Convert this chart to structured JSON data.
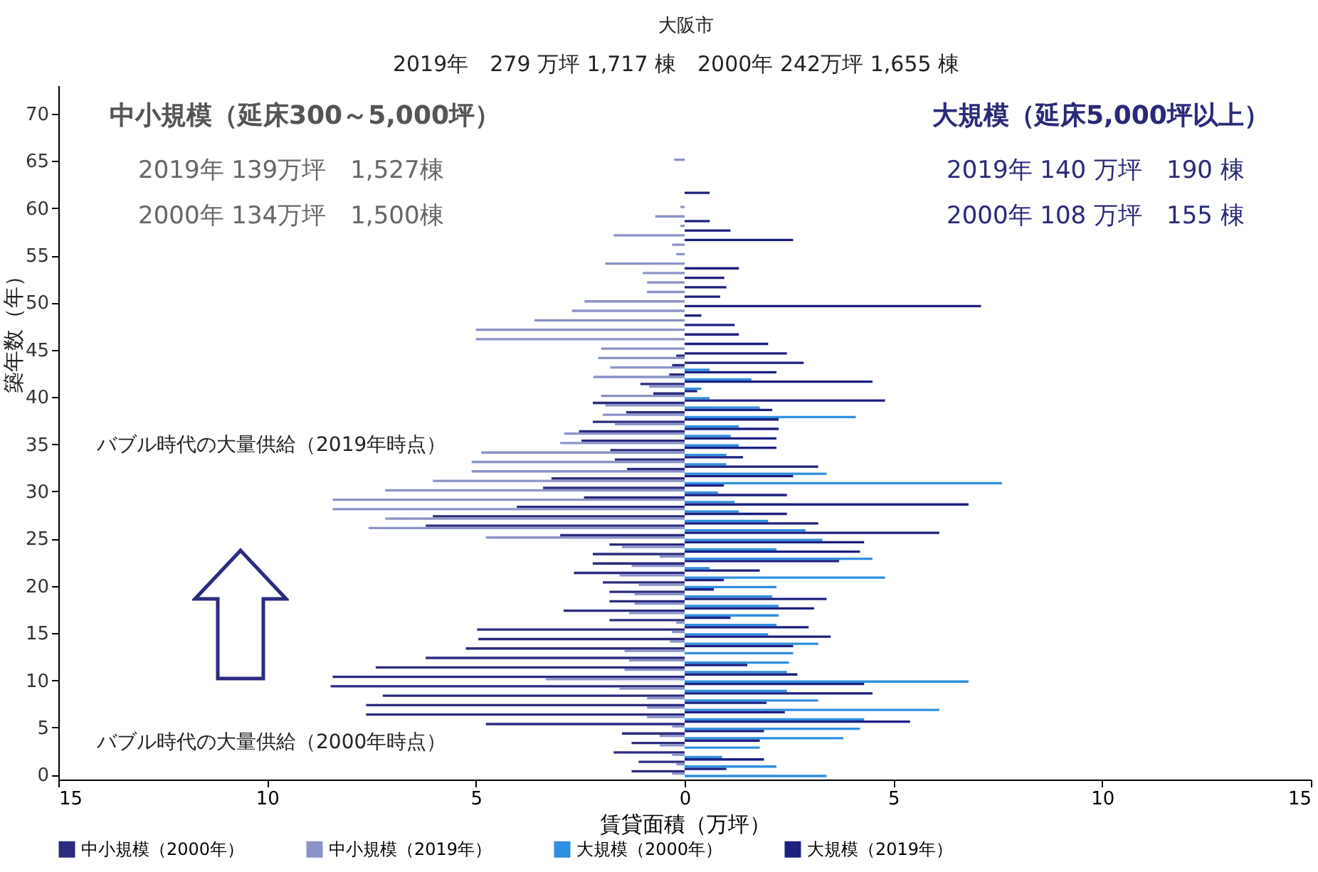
{
  "chart_data": {
    "type": "bar",
    "orientation": "horizontal",
    "xlabel": "賃貸面積（万坪）",
    "ylabel": "築年数（年）",
    "x": [
      0,
      1,
      2,
      3,
      4,
      5,
      6,
      7,
      8,
      9,
      10,
      11,
      12,
      13,
      14,
      15,
      16,
      17,
      18,
      19,
      20,
      21,
      22,
      23,
      24,
      25,
      26,
      27,
      28,
      29,
      30,
      31,
      32,
      33,
      34,
      35,
      36,
      37,
      38,
      39,
      40,
      41,
      42,
      43,
      44,
      45,
      46,
      47,
      48,
      49,
      50,
      51,
      52,
      53,
      54,
      55,
      56,
      57,
      58,
      59,
      60,
      61,
      62,
      63,
      64,
      65
    ],
    "series": [
      {
        "name": "中小規模（2000年）",
        "color": "#2b2b80",
        "values": [
          -1.27,
          -1.1,
          -1.7,
          -1.27,
          -1.5,
          -4.76,
          -7.63,
          -7.63,
          -7.23,
          -8.48,
          -8.43,
          -7.4,
          -6.2,
          -5.24,
          -4.94,
          -4.97,
          -1.8,
          -2.9,
          -1.8,
          -1.8,
          -1.96,
          -2.65,
          -2.2,
          -2.2,
          -1.8,
          -2.98,
          -6.2,
          -6.03,
          -4.02,
          -2.41,
          -3.39,
          -3.19,
          -1.38,
          -1.67,
          -1.78,
          -2.47,
          -2.53,
          -2.2,
          -1.4,
          -2.2,
          -0.75,
          -1.06,
          -0.37,
          -0.3,
          -0.2,
          0,
          0,
          0,
          0,
          0,
          0,
          0,
          0,
          0,
          0,
          0,
          0,
          0,
          0,
          0,
          0,
          0,
          0,
          0,
          0,
          0
        ]
      },
      {
        "name": "中小規模（2019年）",
        "color": "#8b93c8",
        "values": [
          -0.3,
          -0.2,
          -0.3,
          -0.6,
          -0.6,
          -0.3,
          -0.9,
          -0.9,
          -0.9,
          -1.56,
          -3.33,
          -1.44,
          -1.33,
          -1.44,
          -0.35,
          -0.3,
          -0.2,
          -1.33,
          -1.2,
          -1.2,
          -1.1,
          -1.56,
          -1.27,
          -0.6,
          -1.5,
          -4.76,
          -7.57,
          -7.17,
          -8.43,
          -8.43,
          -7.17,
          -6.03,
          -5.1,
          -5.1,
          -4.87,
          -2.98,
          -2.88,
          -1.67,
          -1.96,
          -1.9,
          -2.0,
          -0.85,
          -2.18,
          -1.78,
          -2.07,
          -2.0,
          -5.0,
          -5.0,
          -3.6,
          -2.7,
          -2.4,
          -0.9,
          -0.9,
          -1.0,
          -1.9,
          -0.2,
          -0.3,
          -1.7,
          -0.1,
          -0.7,
          -0.1,
          0,
          0,
          0,
          0,
          -0.25
        ]
      },
      {
        "name": "大規模（2000年）",
        "color": "#2f8fe0",
        "values": [
          3.4,
          2.2,
          0.9,
          1.8,
          3.8,
          4.2,
          4.3,
          6.1,
          3.2,
          2.45,
          6.8,
          2.45,
          2.5,
          2.6,
          3.2,
          2.0,
          2.2,
          2.25,
          2.25,
          2.1,
          2.2,
          4.8,
          0.6,
          4.5,
          2.2,
          3.3,
          2.9,
          2.0,
          1.3,
          1.2,
          0.8,
          7.6,
          3.4,
          1.0,
          1.0,
          1.3,
          1.1,
          1.3,
          4.1,
          1.8,
          0.6,
          0.4,
          1.6,
          0.6,
          0,
          0,
          0,
          0,
          0,
          0,
          0,
          0,
          0,
          0,
          0,
          0,
          0,
          0,
          0,
          0,
          0,
          0,
          0,
          0,
          0,
          0
        ]
      },
      {
        "name": "大規模（2019年）",
        "color": "#1c2080",
        "values": [
          0,
          1.0,
          1.9,
          0,
          1.8,
          1.9,
          5.4,
          2.4,
          1.96,
          4.5,
          4.3,
          2.7,
          1.5,
          0,
          2.6,
          3.5,
          2.97,
          1.1,
          3.1,
          3.4,
          0.7,
          0.94,
          1.8,
          3.7,
          4.2,
          4.3,
          6.1,
          3.2,
          2.45,
          6.8,
          2.45,
          0.94,
          2.6,
          3.2,
          1.4,
          2.2,
          2.2,
          2.25,
          2.25,
          2.1,
          4.8,
          0.3,
          4.5,
          2.2,
          2.85,
          2.45,
          2.0,
          1.3,
          1.2,
          0.4,
          7.1,
          0.85,
          1.0,
          0.95,
          1.3,
          0,
          0,
          2.6,
          1.1,
          0.6,
          0,
          0,
          0.6,
          0,
          0,
          0
        ]
      }
    ],
    "xlim": [
      -15,
      15
    ],
    "xticks": [
      {
        "value": -15,
        "label": "15"
      },
      {
        "value": -10,
        "label": "10"
      },
      {
        "value": -5,
        "label": "5"
      },
      0,
      5,
      10,
      15
    ],
    "ylim": [
      -0.5,
      73
    ],
    "yticks": [
      0,
      5,
      10,
      15,
      20,
      25,
      30,
      35,
      40,
      45,
      50,
      55,
      60,
      65,
      70
    ],
    "legend": "bottom",
    "annotations": [
      "大阪市",
      "2019年　279 万坪 1,717 棟　2000年 242万坪 1,655 棟",
      "中小規模（延床300～5,000坪）",
      "2019年 139万坪　1,527棟",
      "2000年 134万坪　1,500棟",
      "大規模（延床5,000坪以上）",
      "2019年 140 万坪　190 棟",
      "2000年 108 万坪　155 棟",
      "バブル時代の大量供給（2019年時点）",
      "バブル時代の大量供給（2000年時点）"
    ]
  }
}
